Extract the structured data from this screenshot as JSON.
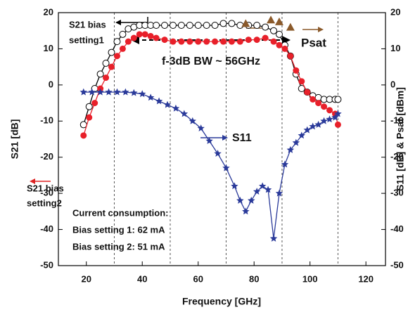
{
  "chart_data": {
    "type": "line",
    "x_label": "Frequency [GHz]",
    "y_label": "S21 [dB]",
    "y2_label": "S11 [dB] & Psat [dBm]",
    "xlim": [
      10,
      127
    ],
    "xticks": [
      20,
      40,
      60,
      80,
      100,
      120
    ],
    "xgrid": [
      30,
      50,
      70,
      90,
      110
    ],
    "ylim": [
      -50,
      20
    ],
    "yticks": [
      20,
      10,
      0,
      -10,
      -20,
      -30,
      -40,
      -50
    ],
    "y2lim": [
      -50,
      20
    ],
    "y2ticks": [
      20,
      10,
      0,
      -10,
      -20,
      -30,
      -40,
      -50
    ],
    "series": [
      {
        "color": "#000000",
        "marker": "open-circle",
        "x": [
          19,
          21,
          23,
          25,
          27,
          29,
          31,
          33,
          35,
          37,
          39,
          41,
          43,
          45,
          48,
          51,
          54,
          57,
          60,
          63,
          66,
          69,
          72,
          75,
          78,
          81,
          84,
          87,
          89,
          91,
          93,
          95,
          97,
          99,
          101,
          103,
          105,
          107,
          109,
          110
        ],
        "values": [
          -11,
          -6,
          -1,
          3,
          6,
          9,
          12,
          14,
          15.5,
          16,
          16.5,
          16.5,
          16.5,
          16.5,
          16.5,
          16.5,
          16.5,
          16.5,
          16.5,
          16.5,
          16.5,
          17,
          17,
          16.5,
          16.5,
          16.5,
          16,
          15,
          14,
          11,
          8,
          3,
          -1,
          -2,
          -3,
          -3.5,
          -4,
          -4,
          -4,
          -4
        ]
      },
      {
        "color": "#e8202a",
        "marker": "filled-circle",
        "x": [
          19,
          21,
          23,
          25,
          27,
          29,
          31,
          33,
          35,
          37,
          39,
          41,
          43,
          45,
          48,
          51,
          54,
          57,
          60,
          63,
          66,
          69,
          72,
          75,
          78,
          81,
          84,
          87,
          89,
          91,
          93,
          95,
          97,
          99,
          101,
          103,
          105,
          107,
          109,
          110
        ],
        "values": [
          -14,
          -9,
          -5,
          -1,
          2,
          5,
          8,
          10,
          12,
          13,
          14,
          14,
          13.5,
          13,
          12.5,
          12,
          12,
          12,
          12,
          12,
          12,
          12,
          12,
          12,
          12.5,
          12.5,
          13,
          12,
          11,
          10,
          8,
          4,
          1,
          -2,
          -4,
          -5,
          -6,
          -7,
          -8,
          -11
        ]
      },
      {
        "color": "#2a3a9a",
        "marker": "star",
        "x": [
          19,
          22,
          25,
          28,
          31,
          34,
          37,
          40,
          43,
          46,
          49,
          52,
          55,
          58,
          61,
          64,
          67,
          70,
          73,
          75,
          77,
          79,
          81,
          83,
          85,
          87,
          89,
          91,
          93,
          95,
          97,
          99,
          101,
          103,
          105,
          107,
          109,
          110
        ],
        "values": [
          -2,
          -2,
          -2,
          -2,
          -2,
          -2,
          -2.2,
          -2.5,
          -3.5,
          -4.5,
          -5.5,
          -6.5,
          -8,
          -10,
          -12,
          -15.5,
          -19,
          -23,
          -28,
          -32,
          -35,
          -32,
          -29.5,
          -28,
          -29,
          -42.5,
          -30,
          -22,
          -18,
          -16,
          -14,
          -12.5,
          -11.5,
          -11,
          -10,
          -9.5,
          -9,
          -8
        ]
      },
      {
        "color": "#8b5a2b",
        "marker": "triangle",
        "axis": "y2",
        "x": [
          77,
          86,
          89,
          93
        ],
        "values": [
          17,
          18,
          17.5,
          16
        ]
      }
    ],
    "annotations": [
      "S21 bias",
      "setting1",
      "S21 bias",
      "setting2",
      "f-3dB BW ~ 56GHz",
      "S11",
      "Psat",
      "Current consumption:",
      "Bias setting 1: 62 mA",
      "Bias setting 2: 51 mA"
    ]
  }
}
